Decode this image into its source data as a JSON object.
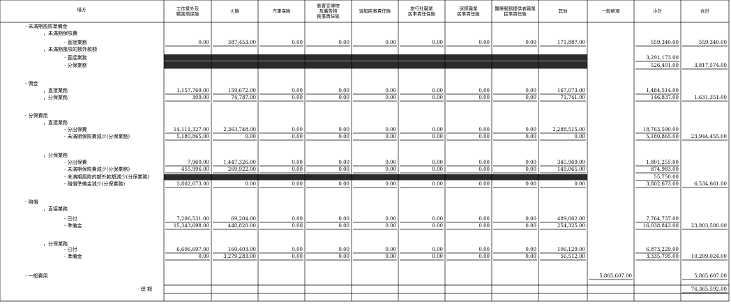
{
  "header": {
    "label": "借方",
    "columns": [
      [
        "工作意外及",
        "職業病保險"
      ],
      [
        "火險"
      ],
      [
        "汽車保險"
      ],
      [
        "裝置宣傳物",
        "及廣告物",
        "民事責任險"
      ],
      [
        "遊艇民事責任險"
      ],
      [
        "旅行社職業",
        "民事責任保險"
      ],
      [
        "律師職業",
        "民事責任險"
      ],
      [
        "醫療服務提供者職業",
        "民事責任險"
      ],
      [
        "其他"
      ],
      [
        "一般帳項"
      ],
      [
        "小計"
      ],
      [
        "合計"
      ]
    ]
  },
  "table": {
    "rows": [
      {
        "label": "- 未滿期風險準備金"
      },
      {
        "label": "，未滿期保險費"
      },
      {
        "label": "- 直接業務",
        "values": [
          "0.00",
          "387,453.00",
          "0.00",
          "0.00",
          "0.00",
          "0.00",
          "0.00",
          "0.00",
          "171,887.00",
          null,
          "559,340.00",
          "559,340.00"
        ]
      },
      {
        "label": "，未滿期風險的額外款額"
      },
      {
        "label": "- 直接業務",
        "values": [
          null,
          null,
          null,
          null,
          null,
          null,
          null,
          null,
          null,
          null,
          "3,291,173.00",
          null
        ]
      },
      {
        "label": "- 分保業務",
        "values": [
          null,
          null,
          null,
          null,
          null,
          null,
          null,
          null,
          null,
          null,
          "526,401.00",
          "3,817,574.00"
        ]
      },
      {
        "label": "- 佣金"
      },
      {
        "label": "，直接業務",
        "values": [
          "1,157,769.00",
          "159,672.00",
          "0.00",
          "0.00",
          "0.00",
          "0.00",
          "0.00",
          "0.00",
          "167,073.00",
          null,
          "1,484,514.00",
          null
        ]
      },
      {
        "label": "，分保業務",
        "values": [
          "309.00",
          "74,787.00",
          "0.00",
          "0.00",
          "0.00",
          "0.00",
          "0.00",
          "0.00",
          "71,741.00",
          null,
          "146,837.00",
          "1,631,351.00"
        ]
      },
      {
        "label": "- 分保費用"
      },
      {
        "label": "，直接業務"
      },
      {
        "label": "- 分出保費",
        "values": [
          "14,111,327.00",
          "2,363,748.00",
          "0.00",
          "0.00",
          "0.00",
          "0.00",
          "0.00",
          "0.00",
          "2,288,515.00",
          null,
          "18,763,590.00",
          null
        ]
      },
      {
        "label": "- 未滿期保險費減少(分保業務)",
        "values": [
          "5,180,865.00",
          "0.00",
          "0.00",
          "0.00",
          "0.00",
          "0.00",
          "0.00",
          "0.00",
          "0.00",
          null,
          "5,180,865.00",
          "23,944,455.00"
        ]
      },
      {
        "label": "，分保業務"
      },
      {
        "label": "- 分出保費",
        "values": [
          "7,960.00",
          "1,447,326.00",
          "0.00",
          "0.00",
          "0.00",
          "0.00",
          "0.00",
          "0.00",
          "345,969.00",
          null,
          "1,801,255.00",
          null
        ]
      },
      {
        "label": "- 未滿期保險費減少(分保業務)",
        "values": [
          "455,996.00",
          "269,922.00",
          "0.00",
          "0.00",
          "0.00",
          "0.00",
          "0.00",
          "0.00",
          "149,065.00",
          null,
          "874,983.00",
          null
        ]
      },
      {
        "label": "- 未滿期風險的額外款額減少(分保業務)",
        "values": [
          null,
          null,
          null,
          null,
          null,
          null,
          null,
          null,
          null,
          null,
          "55,750.00",
          null
        ]
      },
      {
        "label": "- 賠償準備金減少(分保業務)",
        "values": [
          "3,802,673.00",
          "0.00",
          "0.00",
          "0.00",
          "0.00",
          "0.00",
          "0.00",
          "0.00",
          "0.00",
          null,
          "3,802,673.00",
          "6,534,661.00"
        ]
      },
      {
        "label": "- 賠償"
      },
      {
        "label": "，直接業務"
      },
      {
        "label": "- 已付",
        "values": [
          "7,206,531.00",
          "69,204.00",
          "0.00",
          "0.00",
          "0.00",
          "0.00",
          "0.00",
          "0.00",
          "489,002.00",
          null,
          "7,764,737.00",
          null
        ]
      },
      {
        "label": "- 準備金",
        "values": [
          "15,343,698.00",
          "440,820.00",
          "0.00",
          "0.00",
          "0.00",
          "0.00",
          "0.00",
          "0.00",
          "254,325.00",
          null,
          "16,038,843.00",
          "23,803,580.00"
        ]
      },
      {
        "label": "，分保業務"
      },
      {
        "label": "- 已付",
        "values": [
          "6,606,697.00",
          "160,403.00",
          "0.00",
          "0.00",
          "0.00",
          "0.00",
          "0.00",
          "0.00",
          "106,129.00",
          null,
          "6,873,229.00",
          null
        ]
      },
      {
        "label": "- 準備金",
        "values": [
          "0.00",
          "3,279,283.00",
          "0.00",
          "0.00",
          "0.00",
          "0.00",
          "0.00",
          "0.00",
          "56,512.00",
          null,
          "3,335,795.00",
          "10,209,024.00"
        ]
      },
      {
        "label": "- 一般費用",
        "values": [
          null,
          null,
          null,
          null,
          null,
          null,
          null,
          null,
          null,
          "5,865,607.00",
          null,
          "5,865,607.00"
        ]
      },
      {
        "label": "- 總 額",
        "values": [
          null,
          null,
          null,
          null,
          null,
          null,
          null,
          null,
          null,
          null,
          null,
          "76,365,592.00"
        ]
      }
    ]
  }
}
